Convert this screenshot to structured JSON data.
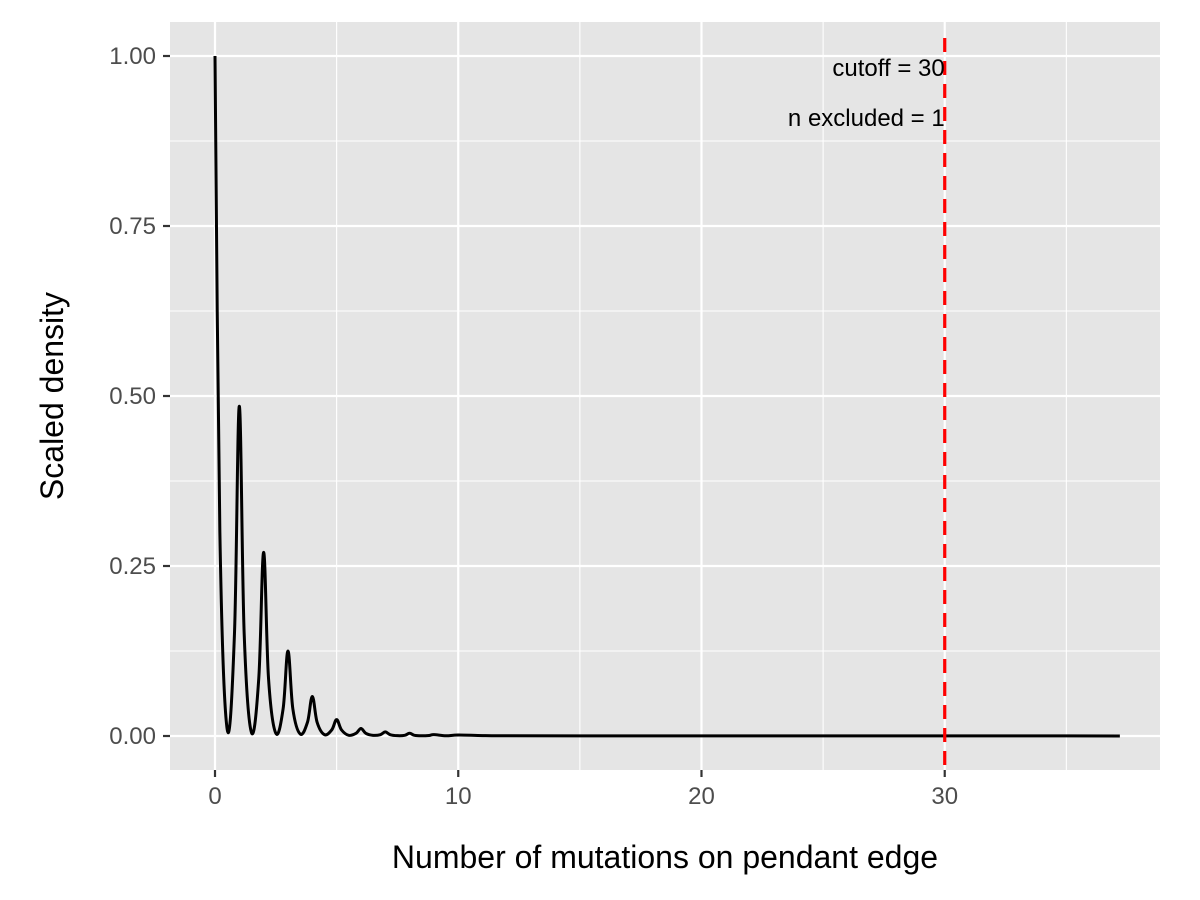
{
  "chart_data": {
    "type": "line",
    "xlabel": "Number of mutations on pendant edge",
    "ylabel": "Scaled density",
    "xlim": [
      -1.85,
      38.85
    ],
    "ylim": [
      -0.05,
      1.05
    ],
    "x_major_ticks": [
      0,
      10,
      20,
      30
    ],
    "x_tick_labels": [
      "0",
      "10",
      "20",
      "30"
    ],
    "x_minor_ticks": [
      5,
      15,
      25,
      35
    ],
    "y_major_ticks": [
      0,
      0.25,
      0.5,
      0.75,
      1.0
    ],
    "y_tick_labels": [
      "0.00",
      "0.25",
      "0.50",
      "0.75",
      "1.00"
    ],
    "y_minor_ticks": [
      0.125,
      0.375,
      0.625,
      0.875
    ],
    "grid": true,
    "background": "#e5e5e5",
    "grid_color": "#ffffff",
    "line_color": "#000000",
    "series": [
      {
        "x": [
          0,
          0.2,
          0.5,
          0.8,
          1,
          1.2,
          1.5,
          1.8,
          2,
          2.2,
          2.5,
          2.8,
          3,
          3.2,
          3.5,
          3.8,
          4,
          4.2,
          4.5,
          4.8,
          5,
          5.2,
          5.5,
          5.8,
          6,
          6.2,
          6.5,
          6.8,
          7,
          7.2,
          7.5,
          7.8,
          8,
          8.2,
          8.5,
          8.8,
          9,
          9.5,
          10,
          11,
          12,
          15,
          20,
          25,
          30,
          35,
          37.2
        ],
        "y": [
          1.0,
          0.3,
          0.01,
          0.15,
          0.485,
          0.15,
          0.005,
          0.085,
          0.27,
          0.085,
          0.004,
          0.04,
          0.125,
          0.04,
          0.003,
          0.02,
          0.058,
          0.02,
          0.002,
          0.009,
          0.024,
          0.009,
          0.001,
          0.004,
          0.011,
          0.004,
          0.001,
          0.002,
          0.006,
          0.002,
          0.0005,
          0.001,
          0.004,
          0.001,
          0.0003,
          0.0008,
          0.002,
          0.0003,
          0.0015,
          0.0006,
          0.0003,
          0.0002,
          0.0001,
          0.0001,
          0.0001,
          0.0001,
          0.0
        ]
      }
    ],
    "vline": {
      "x": 30,
      "color": "#ff0000",
      "style": "dashed"
    },
    "annotations": [
      "cutoff = 30",
      "n excluded = 1"
    ]
  }
}
